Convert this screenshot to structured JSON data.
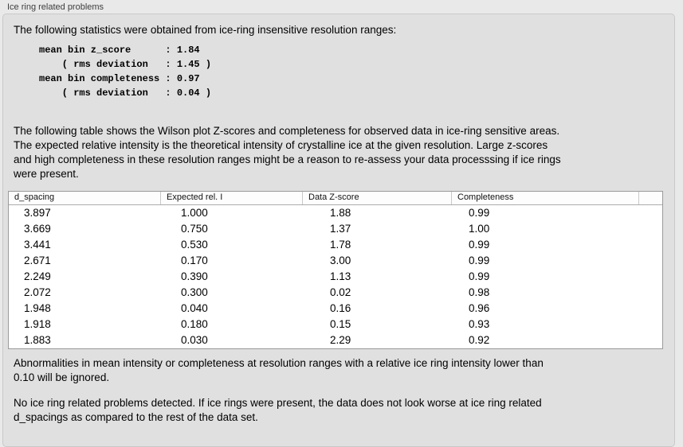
{
  "colors": {
    "page_bg": "#e9e9e9",
    "panel_bg": "#e0e0e0",
    "panel_border": "#c9c9c9",
    "table_bg": "#ffffff",
    "table_border": "#9a9a9a"
  },
  "panel": {
    "title": "Ice ring related problems",
    "intro": "The following statistics were obtained from ice-ring insensitive resolution ranges:",
    "stats_lines": [
      "mean bin z_score      : 1.84",
      "    ( rms deviation   : 1.45 )",
      "mean bin completeness : 0.97",
      "    ( rms deviation   : 0.04 )"
    ],
    "stats": {
      "mean_bin_z_score": "1.84",
      "z_score_rms_deviation": "1.45",
      "mean_bin_completeness": "0.97",
      "completeness_rms_deviation": "0.04"
    },
    "table_description": "The following table shows the Wilson plot Z-scores and completeness for observed data in ice-ring sensitive areas.\nThe expected relative intensity is the theoretical intensity of crystalline ice at the given resolution. Large z-scores\nand high completeness in these resolution ranges might be a reason to re-assess your data processsing if ice rings\nwere present.",
    "ignore_note": "Abnormalities in mean intensity or completeness at resolution ranges with a relative ice ring intensity lower than\n0.10 will be ignored.",
    "conclusion": "No ice ring related problems detected. If ice rings were present, the data does not look worse at ice ring related\nd_spacings as compared to the rest of the data set."
  },
  "table": {
    "headers": [
      "d_spacing",
      "Expected rel. I",
      "Data Z-score",
      "Completeness",
      ""
    ],
    "rows": [
      [
        "3.897",
        "1.000",
        "1.88",
        "0.99"
      ],
      [
        "3.669",
        "0.750",
        "1.37",
        "1.00"
      ],
      [
        "3.441",
        "0.530",
        "1.78",
        "0.99"
      ],
      [
        "2.671",
        "0.170",
        "3.00",
        "0.99"
      ],
      [
        "2.249",
        "0.390",
        "1.13",
        "0.99"
      ],
      [
        "2.072",
        "0.300",
        "0.02",
        "0.98"
      ],
      [
        "1.948",
        "0.040",
        "0.16",
        "0.96"
      ],
      [
        "1.918",
        "0.180",
        "0.15",
        "0.93"
      ],
      [
        "1.883",
        "0.030",
        "2.29",
        "0.92"
      ]
    ]
  }
}
